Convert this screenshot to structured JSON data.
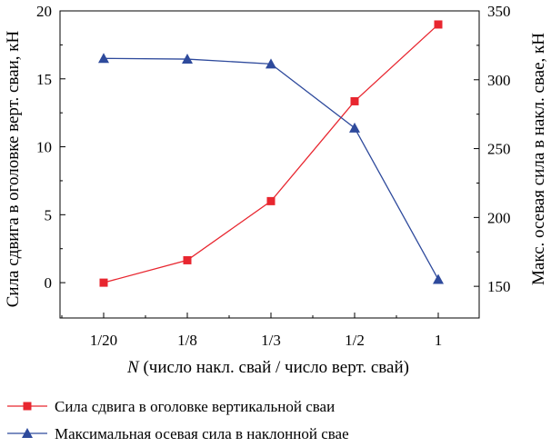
{
  "chart_data": {
    "type": "line",
    "categories": [
      "1/20",
      "1/8",
      "1/3",
      "1/2",
      "1"
    ],
    "xlabel_var": "N",
    "xlabel_rest": " (число накл. свай / число верт. свай)",
    "ylabel_left": "Сила сдвига в оголовке верт. сваи, кН",
    "ylabel_right": "Макс. осевая сила в накл. свае, кН",
    "ylim_left": [
      -2.6,
      20
    ],
    "yticks_left": [
      0,
      5,
      10,
      15,
      20
    ],
    "ylim_right": [
      127,
      350
    ],
    "yticks_right": [
      150,
      200,
      250,
      300,
      350
    ],
    "grid": false,
    "legend_position": "bottom",
    "series": [
      {
        "name": "Сила сдвига в оголовке вертикальной сваи",
        "axis": "left",
        "marker": "square",
        "color": "#e8262f",
        "values": [
          0.0,
          1.65,
          6.0,
          13.35,
          19.0
        ]
      },
      {
        "name": "Максимальная осевая сила в наклонной свае",
        "axis": "right",
        "marker": "triangle",
        "color": "#2e4a9c",
        "values": [
          315.5,
          315.0,
          311.5,
          265.0,
          155.0
        ]
      }
    ]
  }
}
